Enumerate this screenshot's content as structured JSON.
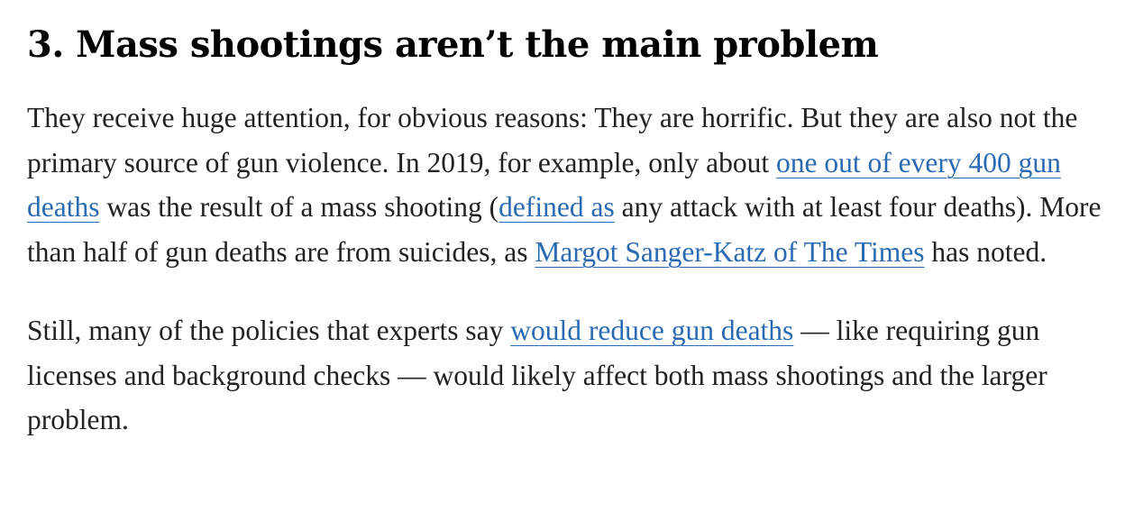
{
  "article": {
    "heading": "3. Mass shootings aren’t the main problem",
    "paragraph1": {
      "t1": "They receive huge attention, for obvious reasons: They are horrific. But they are also not the primary source of gun violence. In 2019, for example, only about ",
      "link1": "one out of every 400 gun deaths",
      "t2": " was the result of a mass shooting (",
      "link2": "defined as",
      "t3": " any attack with at least four deaths). More than half of gun deaths are from suicides, as ",
      "link3": "Margot Sanger-Katz of The Times",
      "t4": " has noted."
    },
    "paragraph2": {
      "t1": "Still, many of the policies that experts say ",
      "link1": "would reduce gun deaths",
      "t2": " — like requiring gun licenses and background checks — would likely affect both mass shootings and the larger problem."
    }
  },
  "colors": {
    "text": "#222222",
    "heading": "#000000",
    "link": "#2a6ab3"
  }
}
